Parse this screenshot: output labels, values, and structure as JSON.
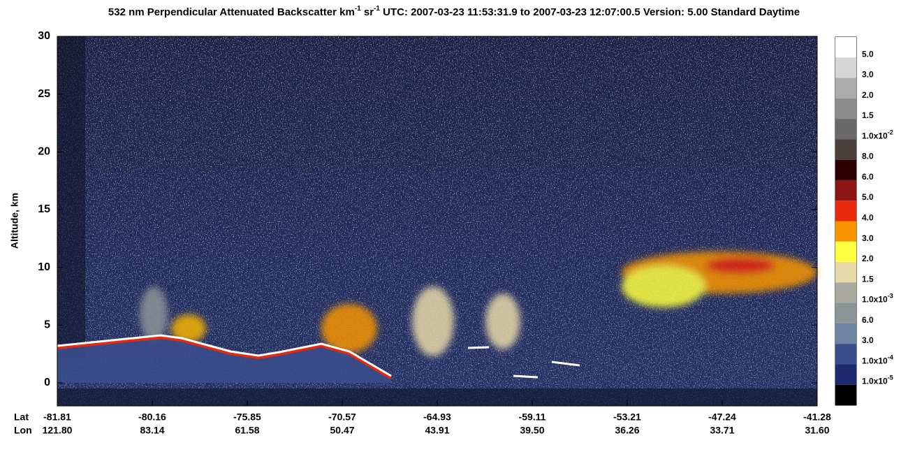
{
  "chart_data": {
    "type": "heatmap",
    "title": [
      "532 nm Perpendicular Attenuated Backscatter km",
      "-1",
      " sr",
      "-1",
      "  UTC: 2007-03-23 11:53:31.9 to 2007-03-23 12:07:00.5  Version: 5.00 Standard Daytime"
    ],
    "ylabel": "Altitude, km",
    "ylim": [
      -2,
      30
    ],
    "yticks": [
      0,
      5,
      10,
      15,
      20,
      25,
      30
    ],
    "xrow_labels": [
      "Lat",
      "Lon"
    ],
    "xticks": [
      {
        "lat": "-81.81",
        "lon": "121.80"
      },
      {
        "lat": "-80.16",
        "lon": "83.14"
      },
      {
        "lat": "-75.85",
        "lon": "61.58"
      },
      {
        "lat": "-70.57",
        "lon": "50.47"
      },
      {
        "lat": "-64.93",
        "lon": "43.91"
      },
      {
        "lat": "-59.11",
        "lon": "39.50"
      },
      {
        "lat": "-53.21",
        "lon": "36.26"
      },
      {
        "lat": "-47.24",
        "lon": "33.71"
      },
      {
        "lat": "-41.28",
        "lon": "31.60"
      }
    ],
    "colorbar": {
      "colors": [
        "#ffffff",
        "#d6d6d6",
        "#ababab",
        "#8c8c8c",
        "#6a6a6a",
        "#4a3f3a",
        "#2d0000",
        "#8b1414",
        "#e8280c",
        "#f79400",
        "#ffff40",
        "#e8d9a8",
        "#aaaaa0",
        "#8c9498",
        "#6e84a0",
        "#3a4e8c",
        "#1e2a6e",
        "#000000"
      ],
      "labels": [
        {
          "base": "5.0"
        },
        {
          "base": "3.0"
        },
        {
          "base": "2.0"
        },
        {
          "base": "1.5"
        },
        {
          "base": "1.0x10",
          "exp": "-2"
        },
        {
          "base": "8.0"
        },
        {
          "base": "6.0"
        },
        {
          "base": "5.0"
        },
        {
          "base": "4.0"
        },
        {
          "base": "3.0"
        },
        {
          "base": "2.0"
        },
        {
          "base": "1.5"
        },
        {
          "base": "1.0x10",
          "exp": "-3"
        },
        {
          "base": "6.0"
        },
        {
          "base": "3.0"
        },
        {
          "base": "1.0x10",
          "exp": "-4"
        },
        {
          "base": "1.0x10",
          "exp": "-5"
        }
      ]
    }
  }
}
